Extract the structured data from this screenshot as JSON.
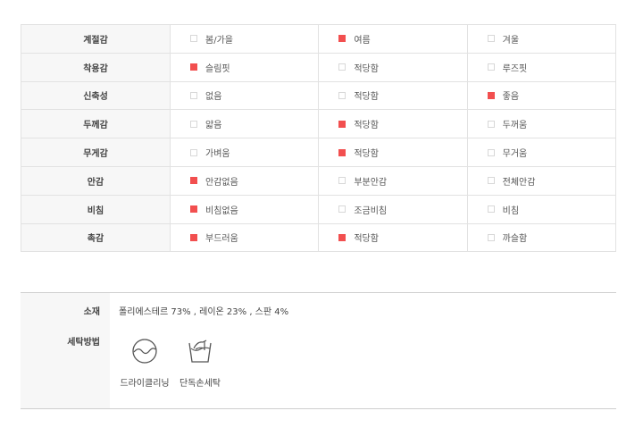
{
  "accent_color": "#f24f4f",
  "spec_rows": [
    {
      "label": "계절감",
      "options": [
        {
          "text": "봄/가을",
          "checked": false
        },
        {
          "text": "여름",
          "checked": true
        },
        {
          "text": "겨울",
          "checked": false
        }
      ]
    },
    {
      "label": "착용감",
      "options": [
        {
          "text": "슬림핏",
          "checked": true
        },
        {
          "text": "적당함",
          "checked": false
        },
        {
          "text": "루즈핏",
          "checked": false
        }
      ]
    },
    {
      "label": "신축성",
      "options": [
        {
          "text": "없음",
          "checked": false
        },
        {
          "text": "적당함",
          "checked": false
        },
        {
          "text": "좋음",
          "checked": true
        }
      ]
    },
    {
      "label": "두께감",
      "options": [
        {
          "text": "얇음",
          "checked": false
        },
        {
          "text": "적당함",
          "checked": true
        },
        {
          "text": "두꺼움",
          "checked": false
        }
      ]
    },
    {
      "label": "무게감",
      "options": [
        {
          "text": "가벼움",
          "checked": false
        },
        {
          "text": "적당함",
          "checked": true
        },
        {
          "text": "무거움",
          "checked": false
        }
      ]
    },
    {
      "label": "안감",
      "options": [
        {
          "text": "안감없음",
          "checked": true
        },
        {
          "text": "부분안감",
          "checked": false
        },
        {
          "text": "전체안감",
          "checked": false
        }
      ]
    },
    {
      "label": "비침",
      "options": [
        {
          "text": "비침없음",
          "checked": true
        },
        {
          "text": "조금비침",
          "checked": false
        },
        {
          "text": "비침",
          "checked": false
        }
      ]
    },
    {
      "label": "촉감",
      "options": [
        {
          "text": "부드러움",
          "checked": true
        },
        {
          "text": "적당함",
          "checked": true
        },
        {
          "text": "까슬함",
          "checked": false
        }
      ]
    }
  ],
  "material": {
    "label": "소재",
    "value": "폴리에스테르 73% , 레이온 23% , 스판 4%"
  },
  "washing": {
    "label": "세탁방법",
    "items": [
      {
        "icon": "dry-clean-icon",
        "text": "드라이클리닝"
      },
      {
        "icon": "hand-wash-icon",
        "text": "단독손세탁"
      }
    ]
  }
}
